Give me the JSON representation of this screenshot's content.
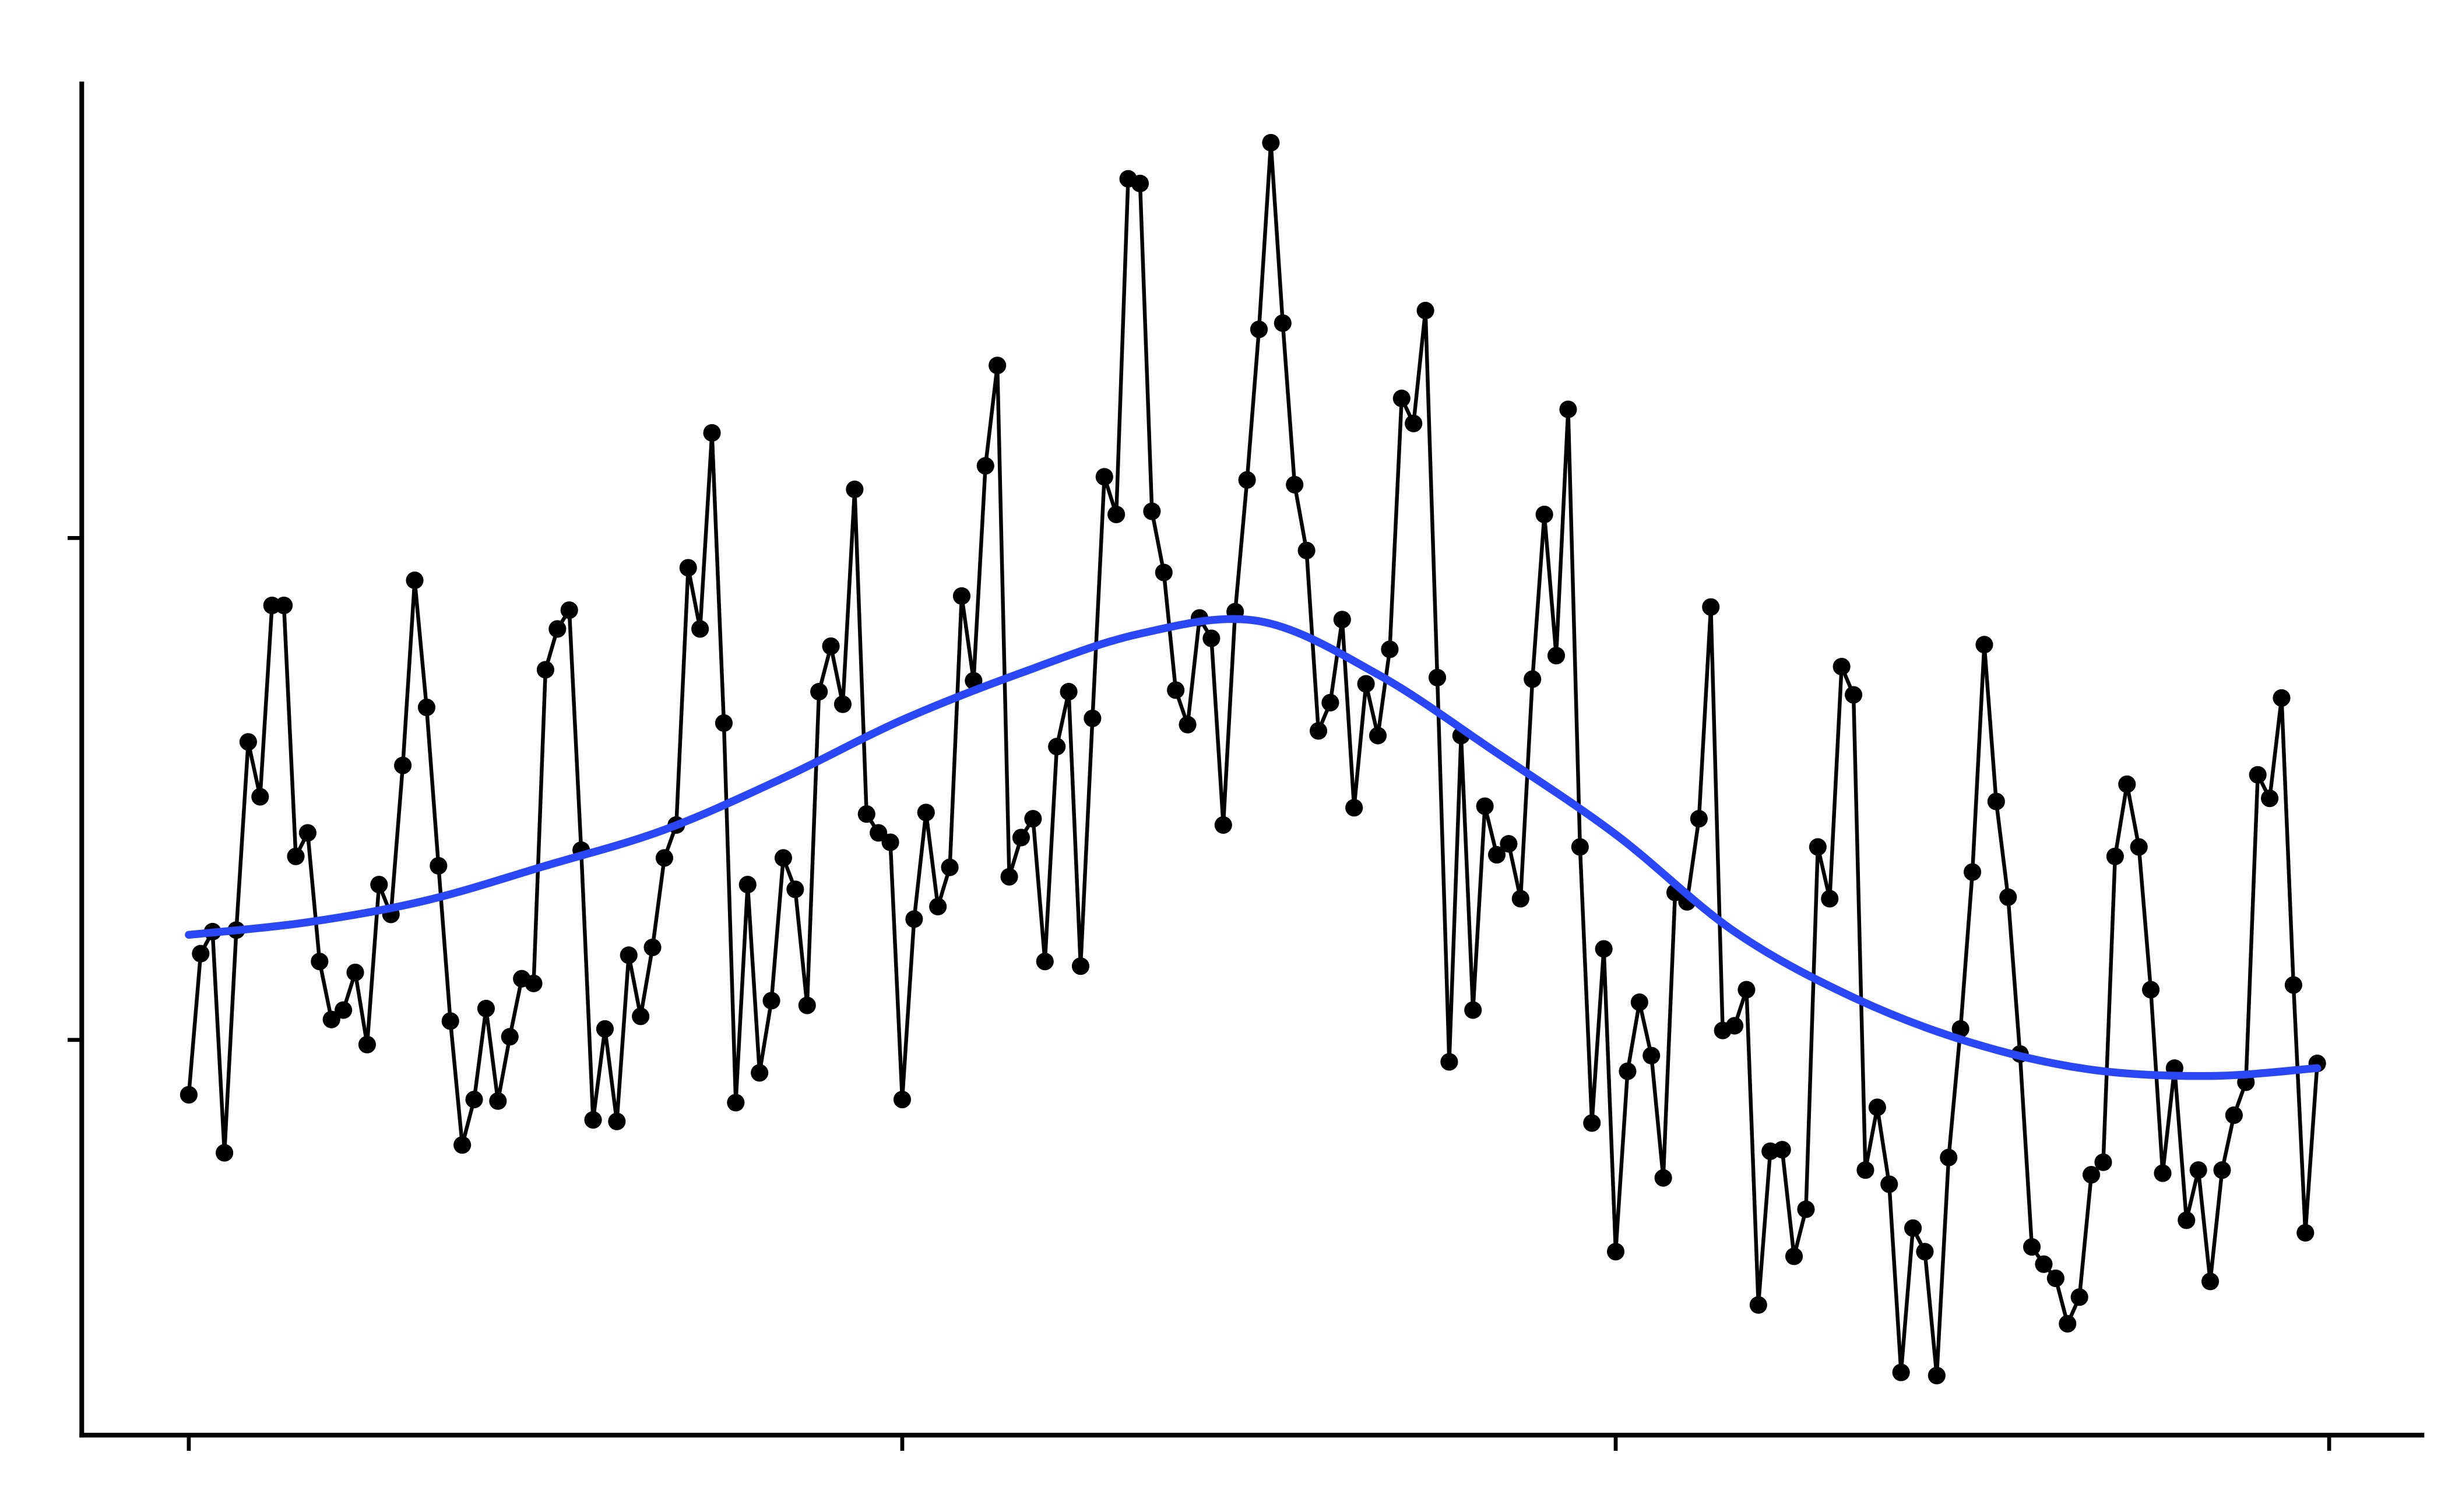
{
  "chart_data": {
    "type": "line",
    "xlim": [
      -9,
      188
    ],
    "ylim": [
      -2.52,
      6.11
    ],
    "xticks": [
      0,
      60,
      120,
      180
    ],
    "yticks": [
      0,
      3.2
    ],
    "grid": false,
    "series": [
      {
        "color": "#000000",
        "markers": true,
        "x": [
          0,
          1,
          2,
          3,
          4,
          5,
          6,
          7,
          8,
          9,
          10,
          11,
          12,
          13,
          14,
          15,
          16,
          17,
          18,
          19,
          20,
          21,
          22,
          23,
          24,
          25,
          26,
          27,
          28,
          29,
          30,
          31,
          32,
          33,
          34,
          35,
          36,
          37,
          38,
          39,
          40,
          41,
          42,
          43,
          44,
          45,
          46,
          47,
          48,
          49,
          50,
          51,
          52,
          53,
          54,
          55,
          56,
          57,
          58,
          59,
          60,
          61,
          62,
          63,
          64,
          65,
          66,
          67,
          68,
          69,
          70,
          71,
          72,
          73,
          74,
          75,
          76,
          77,
          78,
          79,
          80,
          81,
          82,
          83,
          84,
          85,
          86,
          87,
          88,
          89,
          90,
          91,
          92,
          93,
          94,
          95,
          96,
          97,
          98,
          99,
          100,
          101,
          102,
          103,
          104,
          105,
          106,
          107,
          108,
          109,
          110,
          111,
          112,
          113,
          114,
          115,
          116,
          117,
          118,
          119,
          120,
          121,
          122,
          123,
          124,
          125,
          126,
          127,
          128,
          129,
          130,
          131,
          132,
          133,
          134,
          135,
          136,
          137,
          138,
          139,
          140,
          141,
          142,
          143,
          144,
          145,
          146,
          147,
          148,
          149,
          150,
          151,
          152,
          153,
          154,
          155,
          156,
          157,
          158,
          159,
          160,
          161,
          162,
          163,
          164,
          165,
          166,
          167,
          168,
          169,
          170,
          171,
          172,
          173,
          174,
          175,
          176,
          177,
          178,
          179
        ],
        "values": [
          -0.35,
          0.55,
          0.69,
          -0.72,
          0.7,
          1.9,
          1.55,
          2.77,
          2.77,
          1.17,
          1.32,
          0.5,
          0.13,
          0.19,
          0.43,
          -0.03,
          0.99,
          0.8,
          1.75,
          2.93,
          2.12,
          1.11,
          0.12,
          -0.67,
          -0.38,
          0.2,
          -0.39,
          0.02,
          0.39,
          0.36,
          2.36,
          2.62,
          2.74,
          1.21,
          -0.51,
          0.07,
          -0.52,
          0.54,
          0.15,
          0.59,
          1.16,
          1.37,
          3.01,
          2.62,
          3.87,
          2.02,
          -0.4,
          0.99,
          -0.21,
          0.25,
          1.16,
          0.96,
          0.22,
          2.22,
          2.51,
          2.14,
          3.51,
          1.44,
          1.32,
          1.26,
          -0.38,
          0.77,
          1.45,
          0.85,
          1.1,
          2.83,
          2.29,
          3.66,
          4.3,
          1.04,
          1.29,
          1.41,
          0.5,
          1.87,
          2.22,
          0.47,
          2.05,
          3.59,
          3.35,
          5.49,
          5.46,
          3.37,
          2.98,
          2.23,
          2.01,
          2.69,
          2.56,
          1.37,
          2.73,
          3.57,
          4.53,
          5.72,
          4.57,
          3.54,
          3.12,
          1.97,
          2.15,
          2.68,
          1.48,
          2.27,
          1.94,
          2.49,
          4.09,
          3.93,
          4.65,
          2.31,
          -0.14,
          1.94,
          0.19,
          1.49,
          1.18,
          1.25,
          0.9,
          2.3,
          3.35,
          2.45,
          4.02,
          1.23,
          -0.53,
          0.58,
          -1.35,
          -0.2,
          0.24,
          -0.1,
          -0.88,
          0.94,
          0.88,
          1.41,
          2.76,
          0.06,
          0.09,
          0.32,
          -1.69,
          -0.71,
          -0.7,
          -1.38,
          -1.08,
          1.23,
          0.9,
          2.38,
          2.2,
          -0.83,
          -0.43,
          -0.92,
          -2.12,
          -1.2,
          -1.35,
          -2.14,
          -0.75,
          0.07,
          1.07,
          2.52,
          1.52,
          0.91,
          -0.09,
          -1.32,
          -1.43,
          -1.52,
          -1.81,
          -1.64,
          -0.86,
          -0.78,
          1.17,
          1.63,
          1.23,
          0.32,
          -0.85,
          -0.18,
          -1.15,
          -0.83,
          -1.54,
          -0.83,
          -0.48,
          -0.27,
          1.69,
          1.54,
          2.18,
          0.35,
          -1.23,
          -0.15
        ]
      },
      {
        "color": "#2a46f5",
        "markers": false,
        "smooth": true,
        "x": [
          0,
          10,
          20,
          30,
          40,
          50,
          60,
          70,
          80,
          90,
          100,
          110,
          120,
          130,
          140,
          150,
          160,
          170,
          179
        ],
        "values": [
          0.67,
          0.75,
          0.89,
          1.11,
          1.34,
          1.67,
          2.04,
          2.34,
          2.59,
          2.67,
          2.33,
          1.83,
          1.31,
          0.69,
          0.27,
          -0.02,
          -0.19,
          -0.23,
          -0.18
        ]
      }
    ]
  }
}
